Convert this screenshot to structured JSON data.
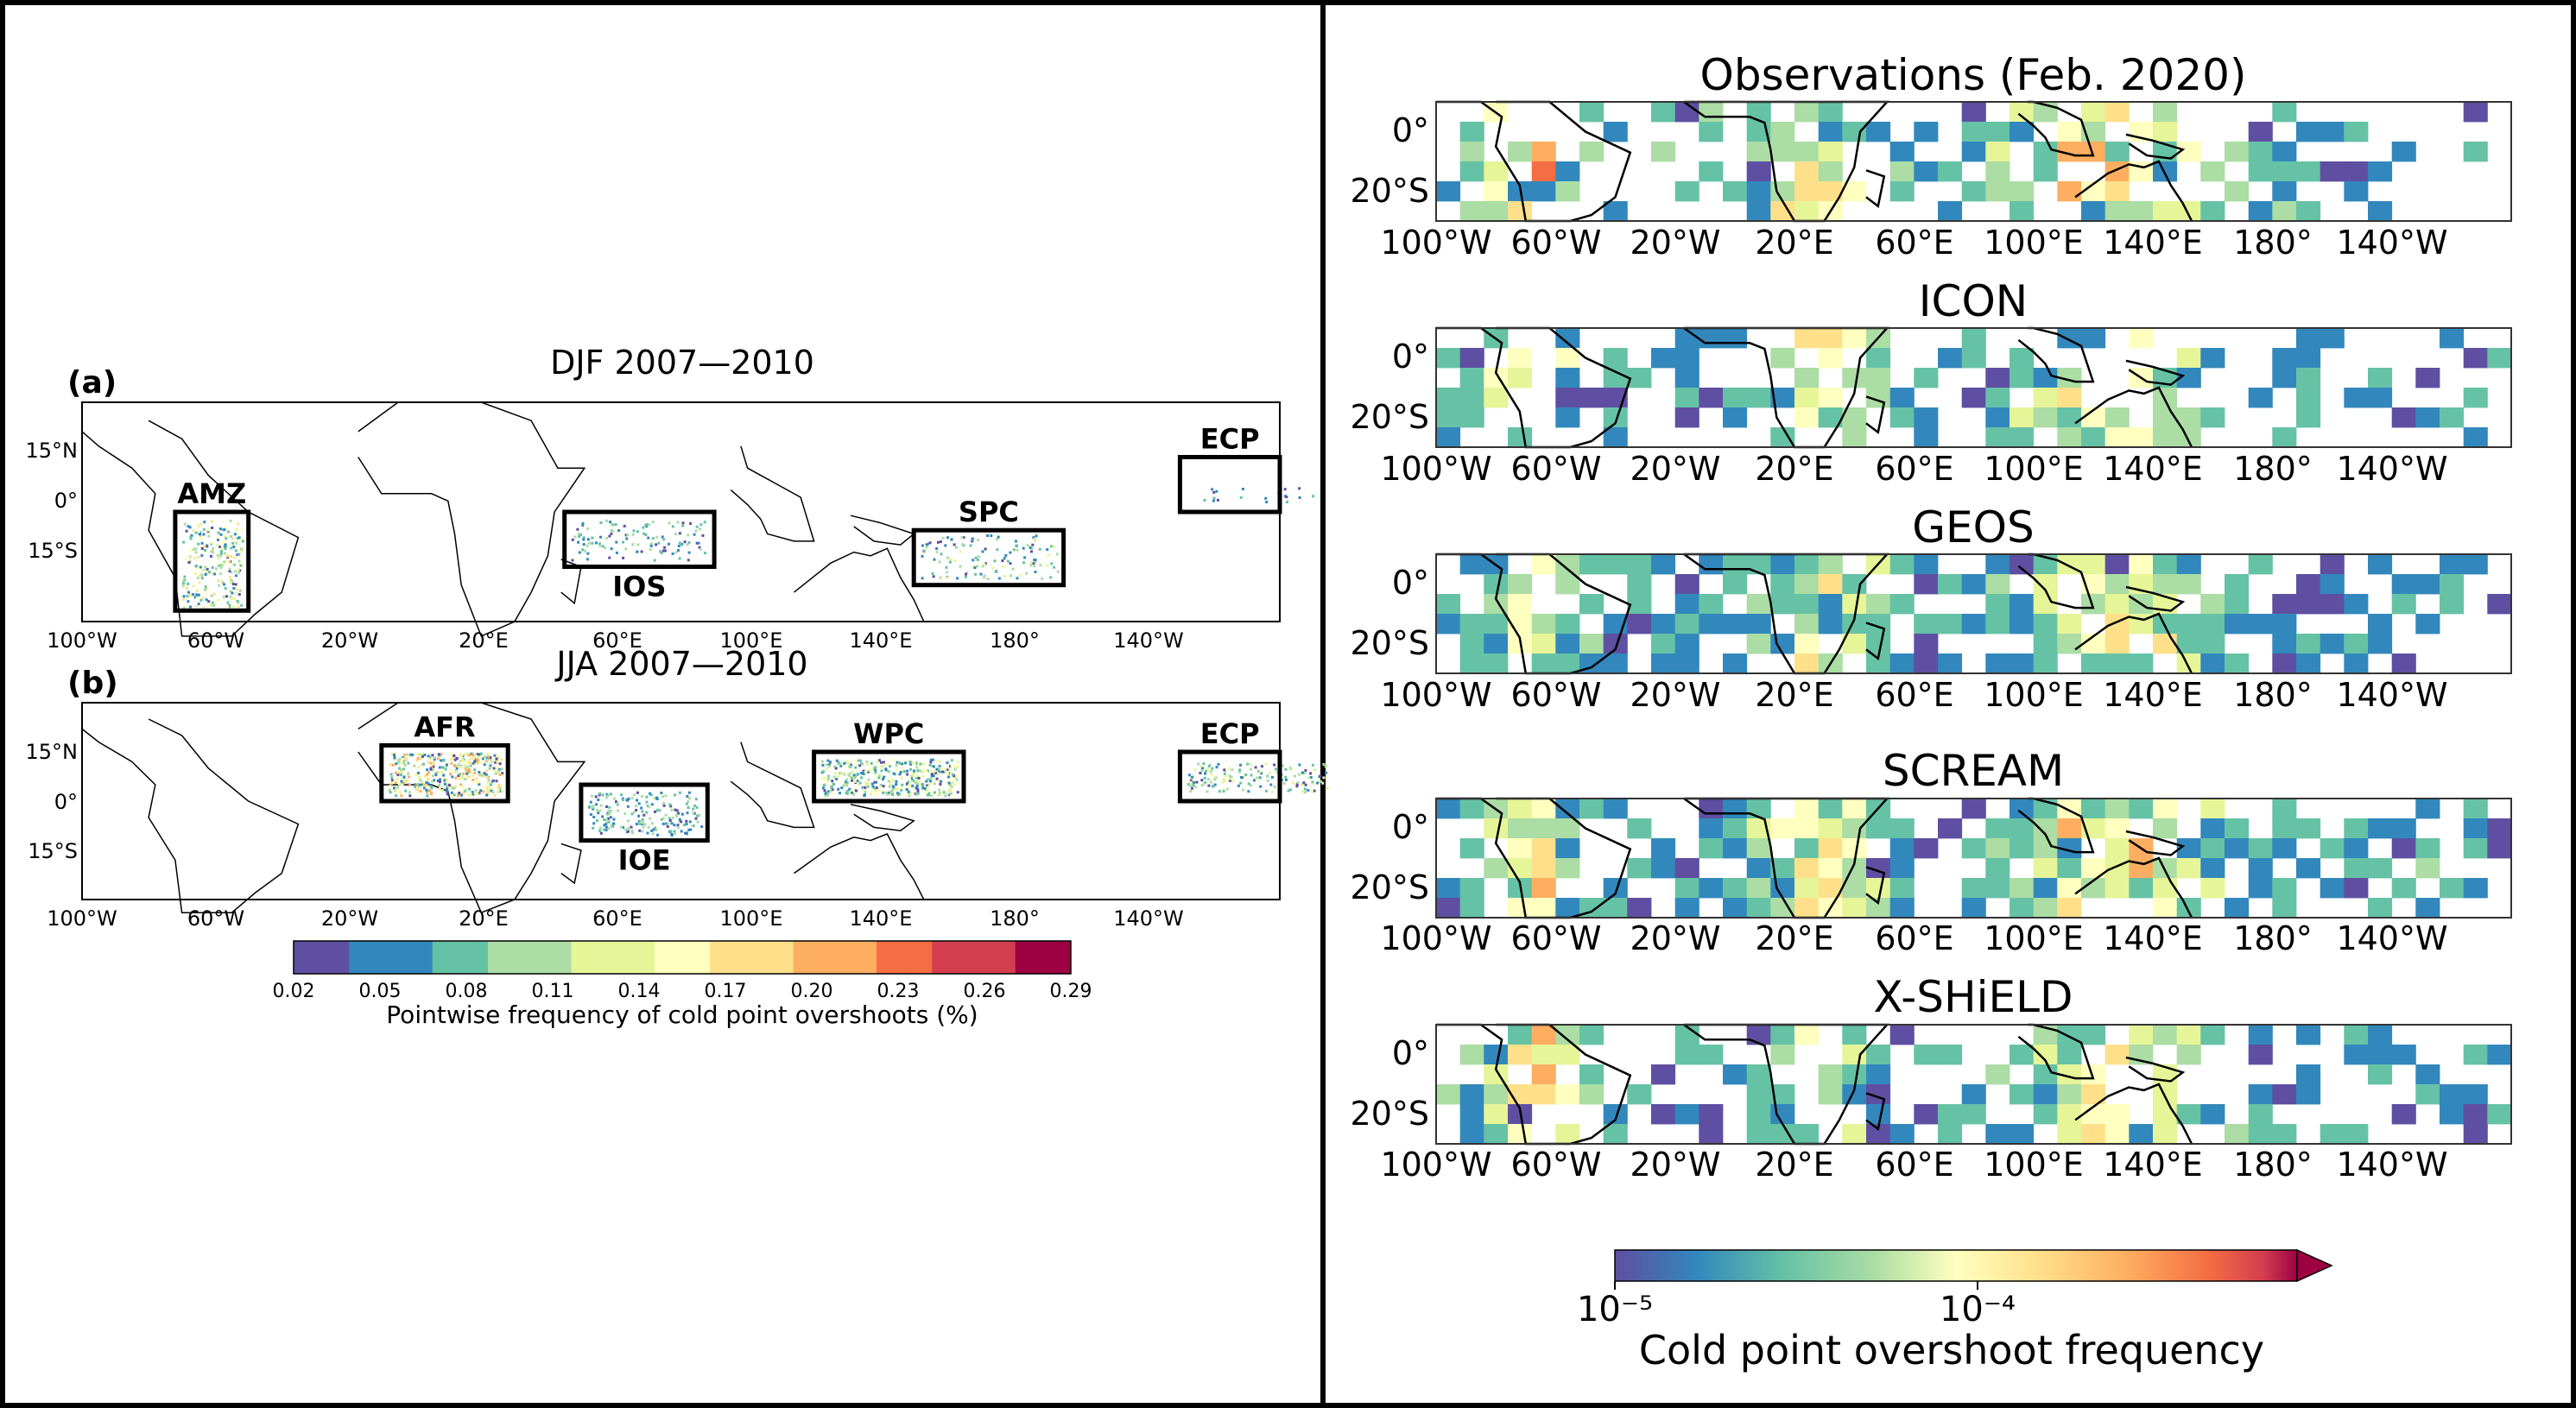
{
  "left": {
    "panels": [
      {
        "tag": "(a)",
        "title": "DJF 2007—2010",
        "regions": [
          {
            "label": "AMZ",
            "lon": [
              -72,
              -50
            ],
            "lat": [
              -27,
              0
            ]
          },
          {
            "label": "IOS",
            "lon": [
              45,
              90
            ],
            "lat": [
              -15,
              0
            ]
          },
          {
            "label": "SPC",
            "lon": [
              150,
              195
            ],
            "lat": [
              -20,
              -5
            ]
          },
          {
            "label": "ECP",
            "lon": [
              230,
              275
            ],
            "lat": [
              0,
              15
            ]
          }
        ]
      },
      {
        "tag": "(b)",
        "title": "JJA 2007—2010",
        "regions": [
          {
            "label": "AFR",
            "lon": [
              -10,
              28
            ],
            "lat": [
              0,
              17
            ]
          },
          {
            "label": "IOE",
            "lon": [
              50,
              88
            ],
            "lat": [
              -12,
              5
            ]
          },
          {
            "label": "WPC",
            "lon": [
              120,
              165
            ],
            "lat": [
              0,
              15
            ]
          },
          {
            "label": "ECP",
            "lon": [
              230,
              275
            ],
            "lat": [
              0,
              15
            ]
          }
        ]
      }
    ],
    "xticks": [
      "100°W",
      "60°W",
      "20°W",
      "20°E",
      "60°E",
      "100°E",
      "140°E",
      "180°",
      "140°W"
    ],
    "yticks": [
      "15°N",
      "0°",
      "15°S"
    ],
    "colorbar": {
      "ticks": [
        "0.02",
        "0.05",
        "0.08",
        "0.11",
        "0.14",
        "0.17",
        "0.20",
        "0.23",
        "0.26",
        "0.29"
      ],
      "label": "Pointwise frequency of cold point overshoots (%)"
    }
  },
  "right": {
    "panels": [
      {
        "title": "Observations (Feb. 2020)"
      },
      {
        "title": "ICON"
      },
      {
        "title": "GEOS"
      },
      {
        "title": "SCREAM"
      },
      {
        "title": "X-SHiELD"
      }
    ],
    "xticks": [
      "100°W",
      "60°W",
      "20°W",
      "20°E",
      "60°E",
      "100°E",
      "140°E",
      "180°",
      "140°W"
    ],
    "yticks": [
      "0°",
      "20°S"
    ],
    "colorbar": {
      "tick_low": "10⁻⁵",
      "tick_high": "10⁻⁴",
      "label": "Cold point overshoot frequency"
    }
  },
  "colors": {
    "frame": "#000000",
    "no_data": "#ffffff",
    "low": "#5e4fa2",
    "high": "#9e0142"
  }
}
